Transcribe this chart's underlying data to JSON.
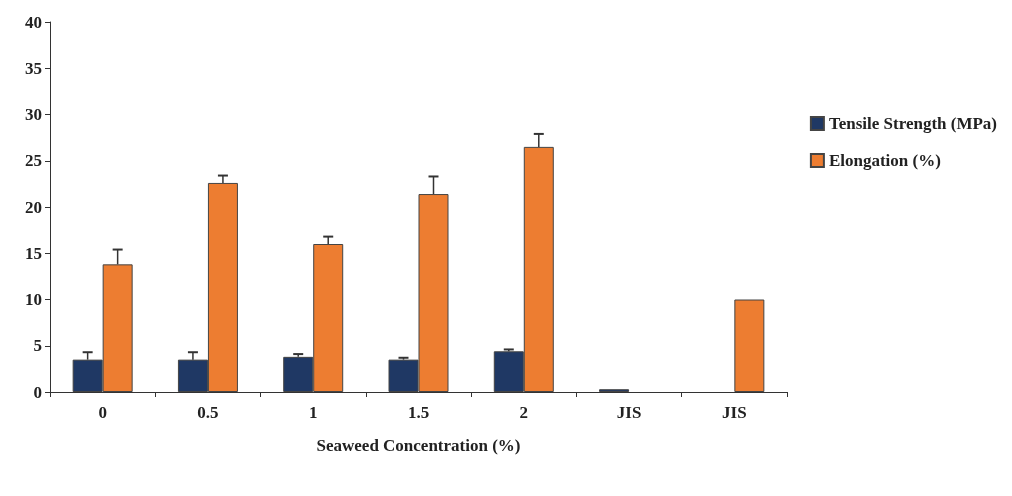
{
  "chart_data": {
    "type": "bar",
    "xlabel": "Seaweed Concentration (%)",
    "categories": [
      "0",
      "0.5",
      "1",
      "1.5",
      "2",
      "JIS",
      "JIS"
    ],
    "series": [
      {
        "name": "Tensile Strength (MPa)",
        "color": "#1f3864",
        "values": [
          3.5,
          3.5,
          3.8,
          3.5,
          4.4,
          0.3,
          null
        ],
        "errors": [
          [
            3.5,
            4.3
          ],
          [
            3.5,
            4.3
          ],
          [
            3.8,
            4.1
          ],
          [
            3.5,
            3.7
          ],
          [
            4.4,
            4.6
          ],
          null,
          null
        ]
      },
      {
        "name": "Elongation (%)",
        "color": "#ed7d31",
        "values": [
          13.8,
          22.6,
          16.0,
          21.4,
          26.5,
          null,
          10.0
        ],
        "errors": [
          [
            13.8,
            15.4
          ],
          [
            22.6,
            23.4
          ],
          [
            16.0,
            16.8
          ],
          [
            21.4,
            23.3
          ],
          [
            26.5,
            27.9
          ],
          null,
          null
        ]
      }
    ],
    "ylim": [
      0,
      40
    ],
    "yticks": [
      0,
      5,
      10,
      15,
      20,
      25,
      30,
      35,
      40
    ],
    "grid": false,
    "legend": "right"
  }
}
